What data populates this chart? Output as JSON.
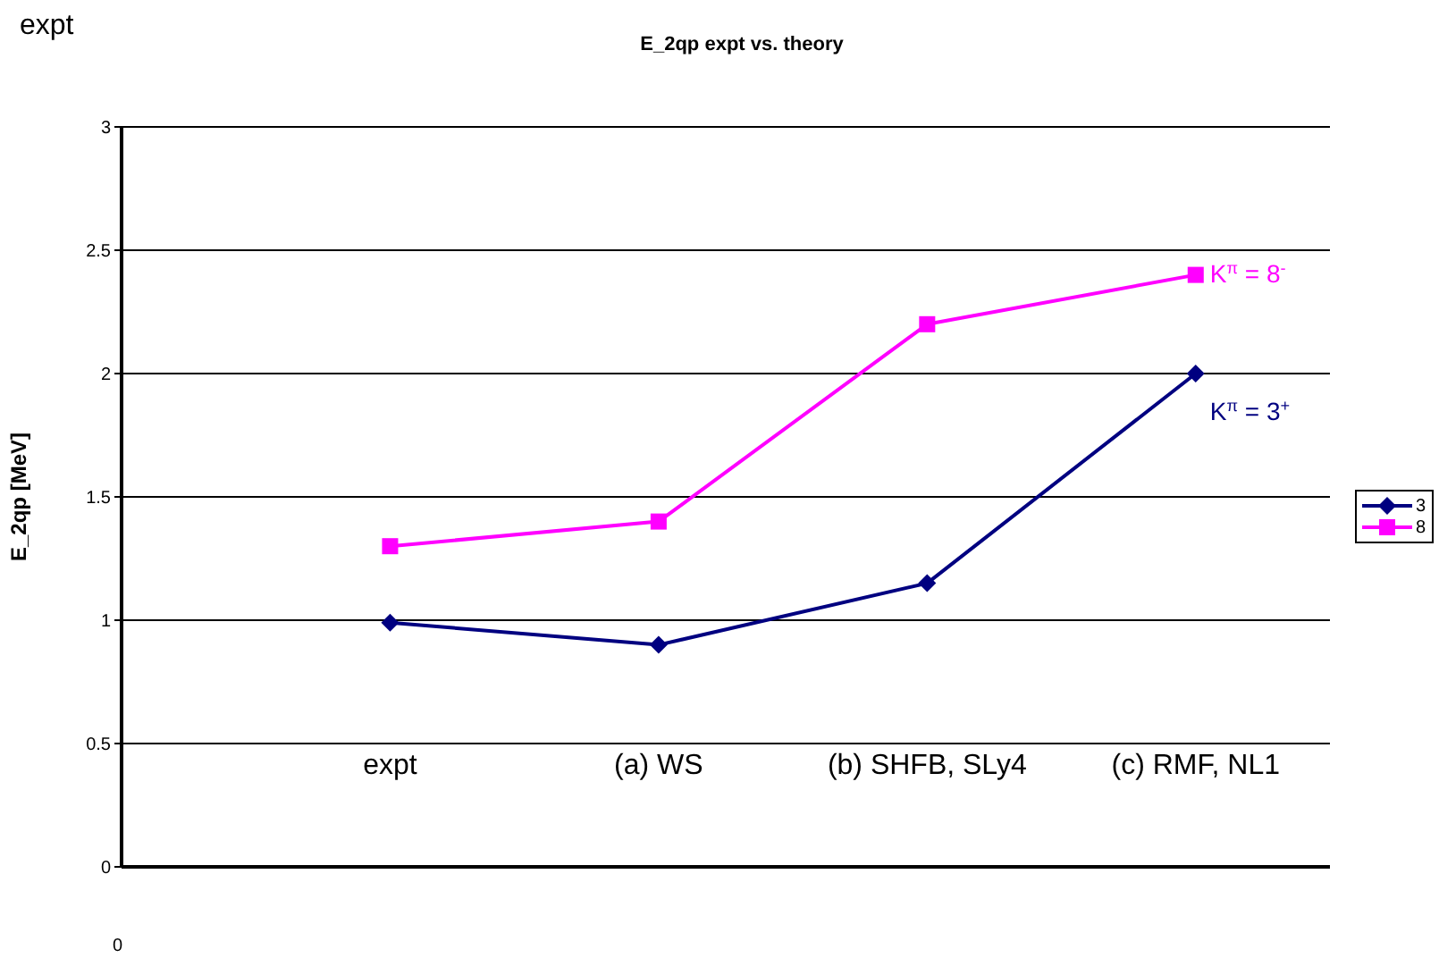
{
  "chart_data": {
    "type": "line",
    "title": "E_2qp expt vs. theory",
    "ylabel": "E_2qp [MeV]",
    "categories": [
      "expt",
      "(a) WS",
      "(b) SHFB, SLy4",
      "(c) RMF, NL1"
    ],
    "series": [
      {
        "name": "3",
        "color": "#000080",
        "marker": "diamond",
        "values": [
          0.99,
          0.9,
          1.15,
          2.0
        ]
      },
      {
        "name": "8",
        "color": "#ff00ff",
        "marker": "square",
        "values": [
          1.3,
          1.4,
          2.2,
          2.4
        ]
      }
    ],
    "ylim": [
      0,
      3
    ],
    "yticks": [
      0,
      0.5,
      1,
      1.5,
      2,
      2.5,
      3
    ],
    "grid": "y",
    "legend": "right",
    "annotations": [
      "expt",
      "0",
      {
        "text": "K$^{π}$ = 3$^{+}$",
        "x": "(c) RMF, NL1",
        "y": 2.0
      },
      {
        "text": "K$^{π}$ = 8$^{-}$",
        "x": "(c) RMF, NL1",
        "y": 2.4
      }
    ]
  }
}
